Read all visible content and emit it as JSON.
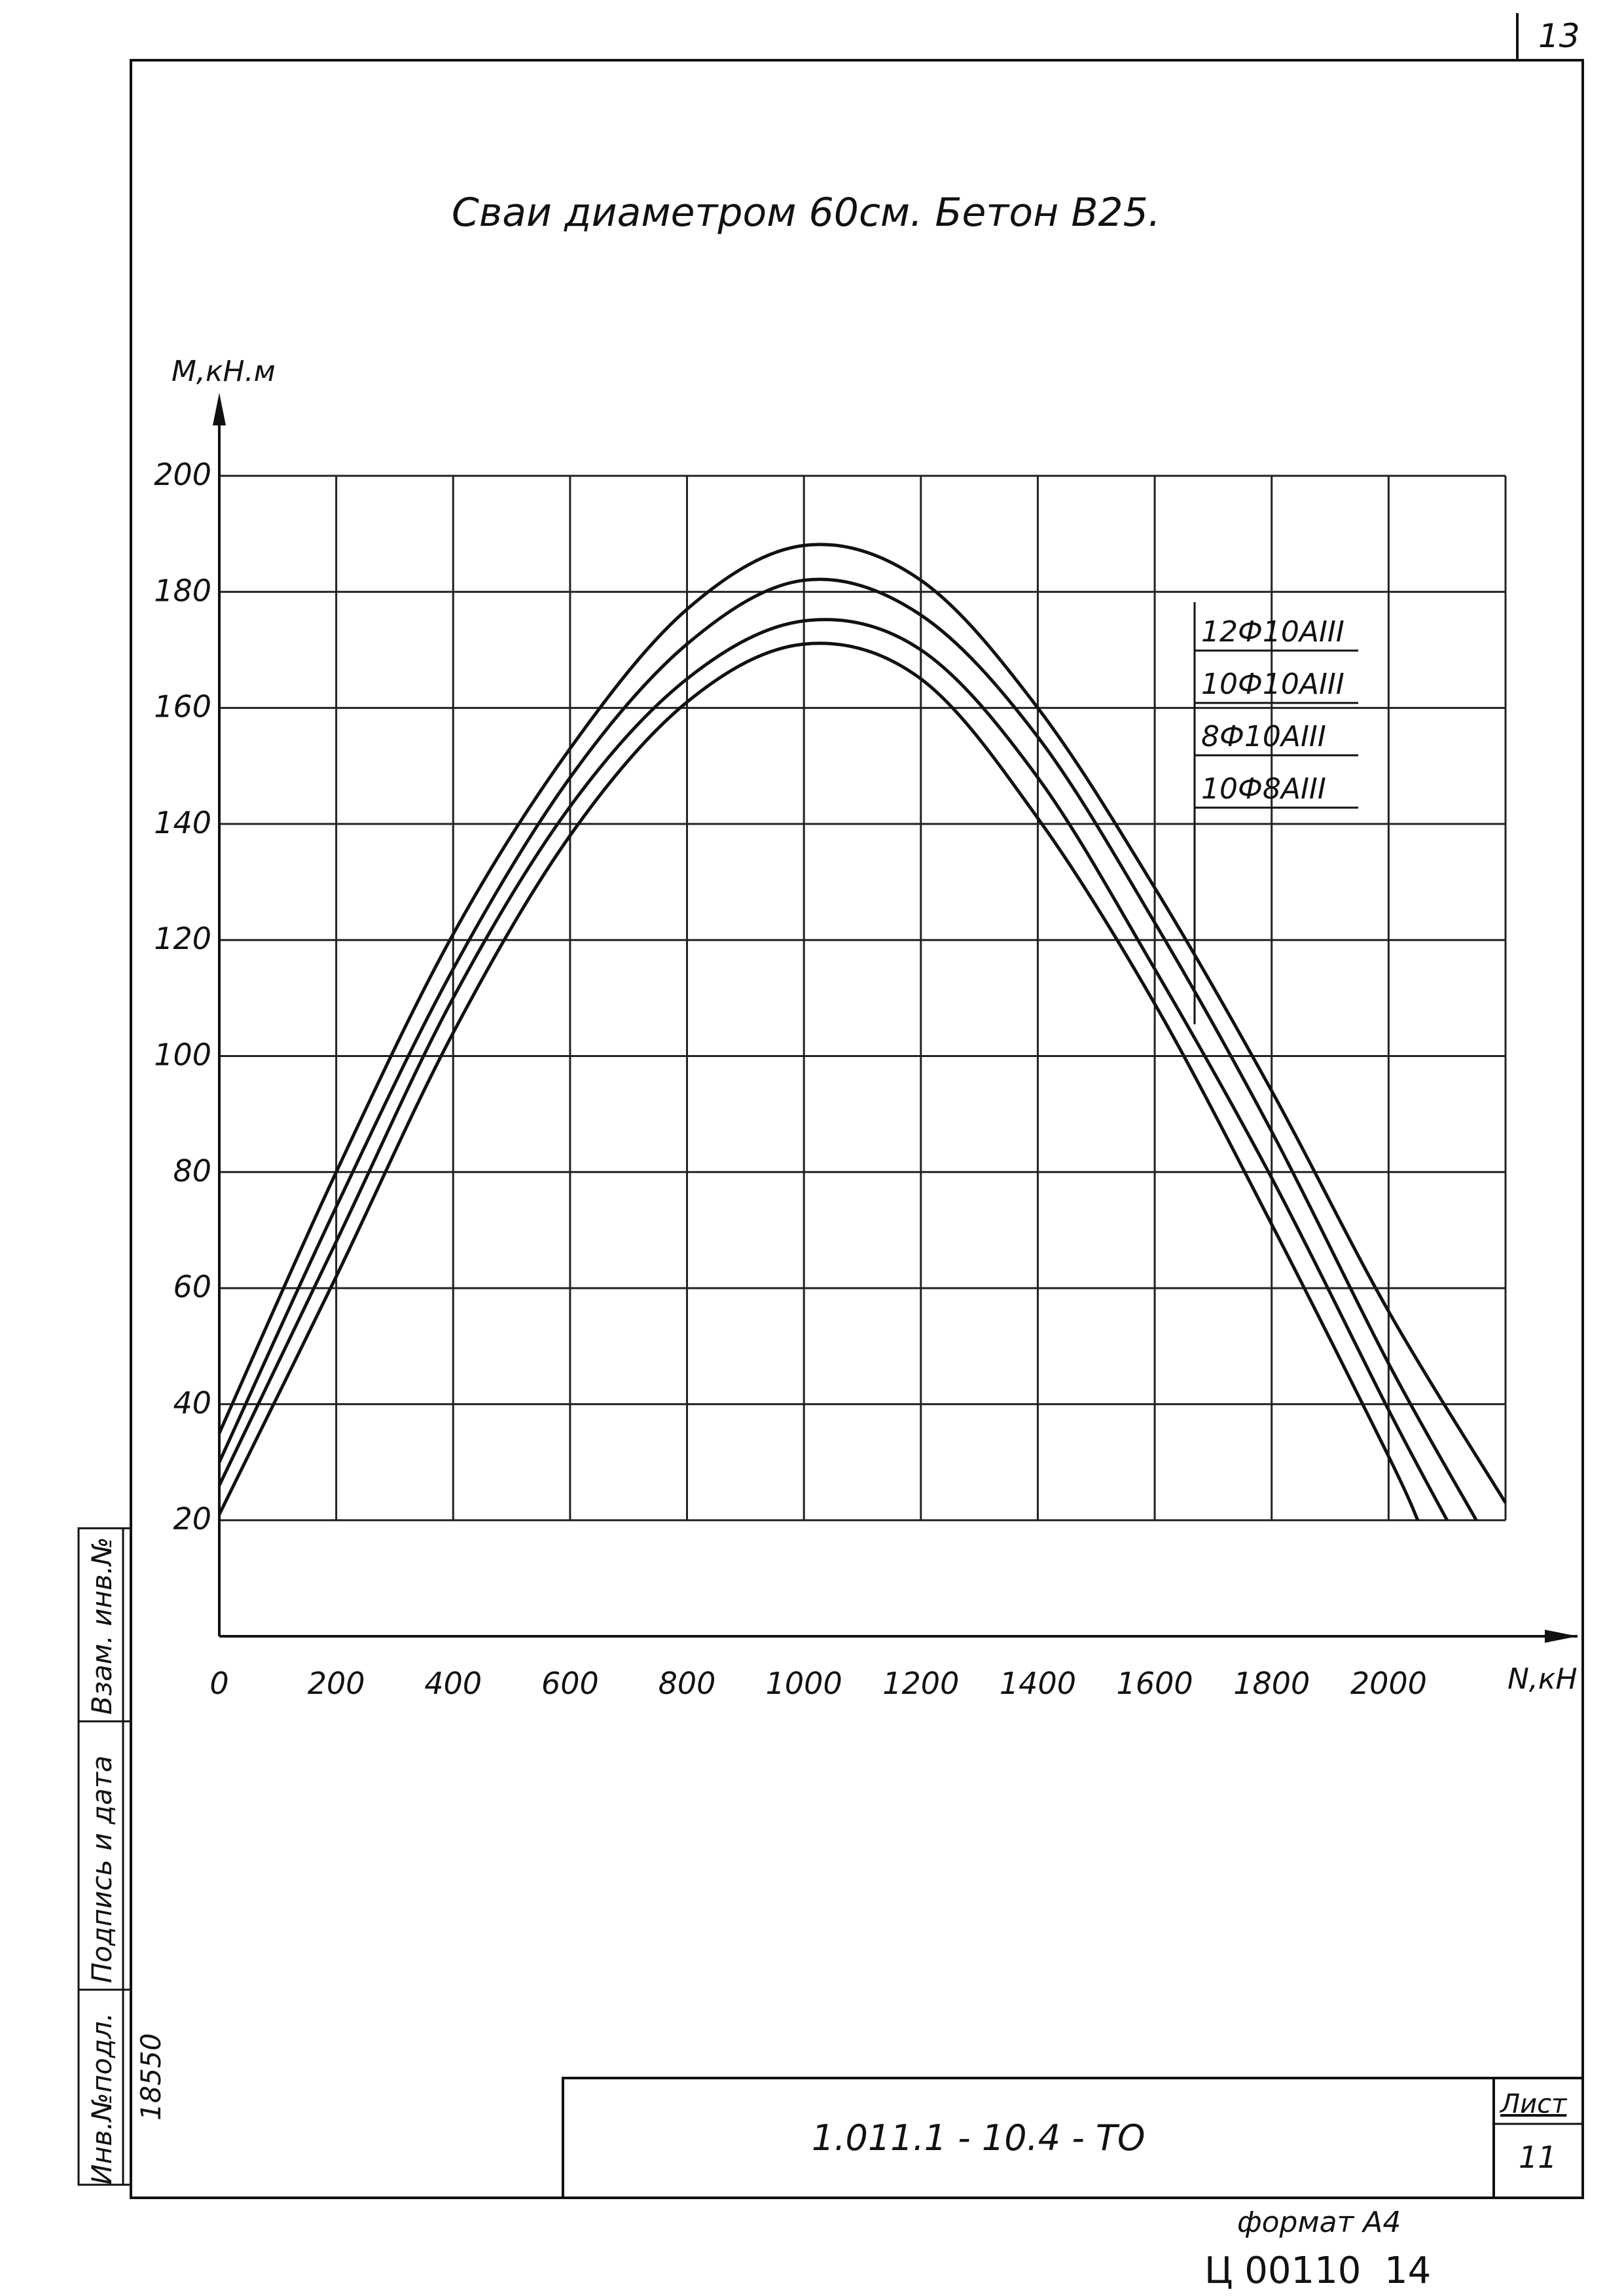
{
  "sheet": {
    "page_number": "13",
    "title": "Сваи диаметром 60см. Бетон В25.",
    "doc_code": "1.011.1 - 10.4 - ТО",
    "sheet_label": "Лист",
    "sheet_number": "11",
    "format": "формат А4",
    "archive_code": "Ц 00110",
    "archive_page": "14",
    "side_stamp": {
      "inv_orig": "Инв.№подл.",
      "sign_date": "Подпись и дата",
      "instead_inv": "Взам. инв.№",
      "inv_number": "18550"
    }
  },
  "chart_data": {
    "type": "line",
    "title": "Сваи диаметром 60см. Бетон В25.",
    "xlabel": "N,кН",
    "ylabel": "M,кН.м",
    "xlim": [
      0,
      2200
    ],
    "ylim": [
      0,
      200
    ],
    "x_ticks": [
      0,
      200,
      400,
      600,
      800,
      1000,
      1200,
      1400,
      1600,
      1800,
      2000
    ],
    "y_ticks": [
      20,
      40,
      60,
      80,
      100,
      120,
      140,
      160,
      180,
      200
    ],
    "grid": true,
    "legend_position": "top-right",
    "series": [
      {
        "name": "12Ф10АIII",
        "x": [
          0,
          200,
          400,
          600,
          800,
          1000,
          1200,
          1400,
          1600,
          1800,
          2000,
          2200
        ],
        "y": [
          35,
          80,
          121,
          153,
          177,
          188,
          182,
          160,
          129,
          94,
          56,
          23
        ]
      },
      {
        "name": "10Ф10АIII",
        "x": [
          0,
          200,
          400,
          600,
          800,
          1000,
          1200,
          1400,
          1600,
          1800,
          2000,
          2150
        ],
        "y": [
          30,
          74,
          115,
          148,
          171,
          182,
          176,
          155,
          123,
          87,
          47,
          20
        ]
      },
      {
        "name": "8Ф10АIII",
        "x": [
          0,
          200,
          400,
          600,
          800,
          1000,
          1200,
          1400,
          1600,
          1800,
          2000,
          2100
        ],
        "y": [
          26,
          68,
          110,
          143,
          165,
          175,
          170,
          148,
          115,
          79,
          39,
          20
        ]
      },
      {
        "name": "10Ф8АIII",
        "x": [
          0,
          200,
          400,
          600,
          800,
          1000,
          1200,
          1400,
          1600,
          1800,
          2000,
          2050
        ],
        "y": [
          21,
          62,
          104,
          138,
          161,
          171,
          165,
          141,
          109,
          71,
          31,
          20
        ]
      }
    ]
  }
}
